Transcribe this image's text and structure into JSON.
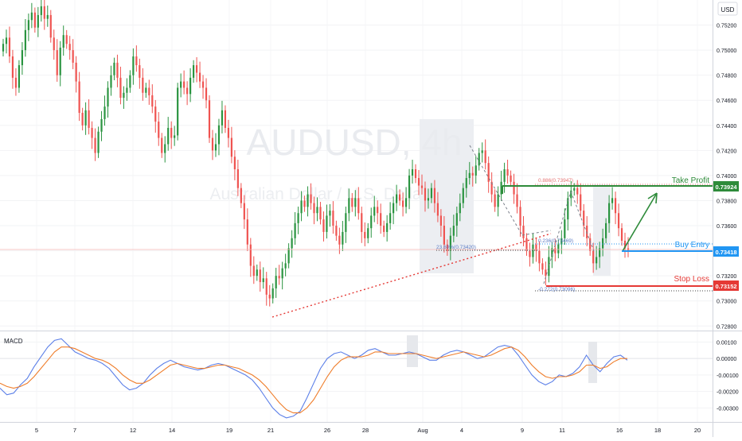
{
  "header": {
    "currency_label": "USD"
  },
  "watermark": {
    "symbol": "AUDUSD, 4h",
    "description": "Australian Dollar / U.S. Dollar"
  },
  "colors": {
    "up": "#2a9440",
    "down": "#ef5350",
    "take_profit": "#2e8b3a",
    "buy_entry": "#2196f3",
    "stop_loss": "#e53935",
    "macd_line": "#5b7fe8",
    "signal_line": "#ef7d2a"
  },
  "chart_data": [
    {
      "type": "candlestick",
      "symbol": "AUDUSD",
      "timeframe": "4h",
      "ylim": [
        0.7277,
        0.754
      ],
      "y_ticks": [
        "0.75200",
        "0.75000",
        "0.74800",
        "0.74600",
        "0.74400",
        "0.74200",
        "0.74000",
        "0.73800",
        "0.73600",
        "0.73400",
        "0.73200",
        "0.73000",
        "0.72800"
      ],
      "x_ticks": [
        "5",
        "7",
        "12",
        "14",
        "19",
        "21",
        "26",
        "28",
        "Aug",
        "4",
        "9",
        "11",
        "16",
        "18",
        "20"
      ],
      "ohlc_close": [
        0.7505,
        0.751,
        0.7495,
        0.7478,
        0.747,
        0.7488,
        0.75,
        0.7516,
        0.7524,
        0.753,
        0.7518,
        0.7528,
        0.7535,
        0.7525,
        0.7528,
        0.751,
        0.75,
        0.748,
        0.7502,
        0.7512,
        0.7505,
        0.75,
        0.749,
        0.7475,
        0.745,
        0.744,
        0.7452,
        0.7438,
        0.743,
        0.7418,
        0.7435,
        0.7445,
        0.7455,
        0.747,
        0.748,
        0.749,
        0.7478,
        0.7462,
        0.7466,
        0.747,
        0.748,
        0.7495,
        0.7488,
        0.7478,
        0.7466,
        0.747,
        0.7464,
        0.7455,
        0.7443,
        0.743,
        0.7418,
        0.7425,
        0.7438,
        0.743,
        0.7432,
        0.747,
        0.7475,
        0.747,
        0.7465,
        0.7478,
        0.7488,
        0.7482,
        0.7475,
        0.747,
        0.746,
        0.743,
        0.742,
        0.7425,
        0.744,
        0.7452,
        0.7438,
        0.743,
        0.7415,
        0.7405,
        0.739,
        0.7378,
        0.7365,
        0.7345,
        0.7328,
        0.732,
        0.7325,
        0.7315,
        0.7318,
        0.7305,
        0.7302,
        0.731,
        0.732,
        0.7318,
        0.7326,
        0.733,
        0.7342,
        0.735,
        0.7362,
        0.737,
        0.738,
        0.7375,
        0.7385,
        0.7378,
        0.737,
        0.7375,
        0.7365,
        0.7355,
        0.7368,
        0.7372,
        0.736,
        0.7352,
        0.7345,
        0.7355,
        0.737,
        0.7382,
        0.7375,
        0.7382,
        0.737,
        0.7355,
        0.735,
        0.7358,
        0.7368,
        0.7375,
        0.737,
        0.736,
        0.7355,
        0.7362,
        0.737,
        0.7378,
        0.7385,
        0.738,
        0.7375,
        0.7382,
        0.74,
        0.7405,
        0.7398,
        0.7392,
        0.739,
        0.738,
        0.7382,
        0.739,
        0.7378,
        0.7368,
        0.736,
        0.7345,
        0.734,
        0.7352,
        0.736,
        0.737,
        0.7378,
        0.739,
        0.7398,
        0.7402,
        0.74,
        0.7408,
        0.7418,
        0.742,
        0.741,
        0.7395,
        0.7385,
        0.7375,
        0.7385,
        0.7395,
        0.7405,
        0.74,
        0.7395,
        0.7385,
        0.7375,
        0.736,
        0.735,
        0.734,
        0.7335,
        0.7345,
        0.734,
        0.733,
        0.7325,
        0.732,
        0.7335,
        0.7342,
        0.7338,
        0.7345,
        0.735,
        0.7365,
        0.7382,
        0.7388,
        0.739,
        0.7385,
        0.7372,
        0.736,
        0.735,
        0.734,
        0.733,
        0.7335,
        0.7342,
        0.735,
        0.7362,
        0.7378,
        0.7382,
        0.737,
        0.7358,
        0.7348,
        0.7342,
        0.734
      ],
      "price_levels": [
        {
          "name": "Take Profit",
          "value": "0.73924"
        },
        {
          "name": "Buy Entry",
          "value": "0.73418"
        },
        {
          "name": "Stop Loss",
          "value": "0.73152"
        }
      ],
      "fib_labels": [
        {
          "text": "0.886(0.73947)",
          "value": 0.73947
        },
        {
          "text": "23.60%(0.73420)",
          "value": 0.7342
        },
        {
          "text": "0.236(0.73469)",
          "value": 0.73469
        },
        {
          "text": "-0.272(0.73096)",
          "value": 0.73096
        }
      ]
    },
    {
      "type": "line",
      "title": "MACD",
      "ylim": [
        -0.0038,
        0.0016
      ],
      "y_ticks": [
        "0.00100",
        "0.00000",
        "-0.00100",
        "-0.00200",
        "-0.00300"
      ],
      "series": [
        {
          "name": "MACD",
          "values": [
            -0.0018,
            -0.0022,
            -0.0021,
            -0.0016,
            -0.0012,
            -0.0005,
            0.0001,
            0.0007,
            0.0011,
            0.0012,
            0.0008,
            0.0004,
            0.0002,
            0.0,
            -0.0001,
            -0.0003,
            -0.0006,
            -0.0011,
            -0.0016,
            -0.0019,
            -0.0018,
            -0.0015,
            -0.001,
            -0.0006,
            -0.0003,
            -0.0001,
            -0.0003,
            -0.0005,
            -0.0006,
            -0.0007,
            -0.0006,
            -0.0004,
            -0.0003,
            -0.0004,
            -0.0006,
            -0.0008,
            -0.001,
            -0.0013,
            -0.0018,
            -0.0024,
            -0.003,
            -0.0034,
            -0.0036,
            -0.0035,
            -0.0032,
            -0.0024,
            -0.0015,
            -0.0006,
            0.0,
            0.0003,
            0.0004,
            0.0002,
            0.0,
            0.0002,
            0.0005,
            0.0006,
            0.0004,
            0.0002,
            0.0002,
            0.0003,
            0.0004,
            0.0003,
            0.0001,
            -0.0001,
            -0.0001,
            0.0002,
            0.0004,
            0.0005,
            0.0004,
            0.0002,
            0.0,
            0.0001,
            0.0004,
            0.0007,
            0.0008,
            0.0007,
            0.0002,
            -0.0004,
            -0.001,
            -0.0014,
            -0.0016,
            -0.0014,
            -0.001,
            -0.0011,
            -0.0009,
            -0.0005,
            0.0002,
            -0.0004,
            -0.0008,
            -0.0003,
            0.0001,
            0.0002,
            -0.0001
          ]
        },
        {
          "name": "Signal",
          "values": [
            -0.0015,
            -0.0017,
            -0.0018,
            -0.0017,
            -0.0015,
            -0.0011,
            -0.0006,
            -0.0001,
            0.0004,
            0.0007,
            0.0007,
            0.0006,
            0.0004,
            0.0002,
            0.0,
            -0.0001,
            -0.0003,
            -0.0006,
            -0.001,
            -0.0013,
            -0.0015,
            -0.0015,
            -0.0013,
            -0.001,
            -0.0007,
            -0.0004,
            -0.0003,
            -0.0004,
            -0.0005,
            -0.0006,
            -0.0006,
            -0.0005,
            -0.0004,
            -0.0004,
            -0.0005,
            -0.0006,
            -0.0008,
            -0.001,
            -0.0013,
            -0.0017,
            -0.0022,
            -0.0027,
            -0.0031,
            -0.0033,
            -0.0033,
            -0.003,
            -0.0025,
            -0.0018,
            -0.0011,
            -0.0005,
            -0.0001,
            0.0001,
            0.0001,
            0.0001,
            0.0002,
            0.0004,
            0.0004,
            0.0003,
            0.0003,
            0.0003,
            0.0003,
            0.0003,
            0.0002,
            0.0001,
            0.0,
            0.0001,
            0.0002,
            0.0003,
            0.0004,
            0.0003,
            0.0002,
            0.0001,
            0.0002,
            0.0004,
            0.0006,
            0.0007,
            0.0005,
            0.0001,
            -0.0004,
            -0.0008,
            -0.0011,
            -0.0012,
            -0.0011,
            -0.0011,
            -0.001,
            -0.0008,
            -0.0004,
            -0.0004,
            -0.0006,
            -0.0005,
            -0.0002,
            0.0,
            0.0
          ]
        }
      ]
    }
  ]
}
